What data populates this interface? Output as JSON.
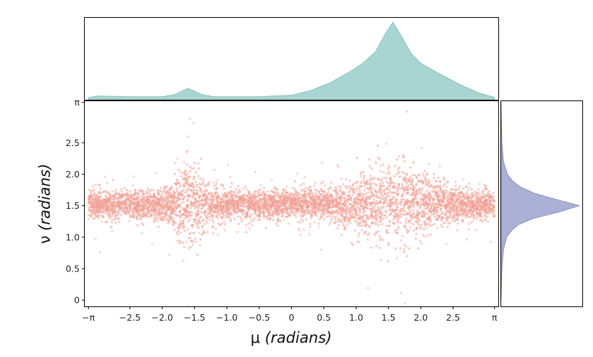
{
  "chart_data": {
    "type": "scatter",
    "title": "",
    "xlabel_symbol": "μ",
    "xlabel_unit": "(radians)",
    "ylabel_symbol": "ν",
    "ylabel_unit": "(radians)",
    "xlim": [
      -3.2,
      3.2
    ],
    "ylim": [
      -0.1,
      3.16
    ],
    "x_ticks": [
      {
        "value": -3.14159,
        "label": "−π"
      },
      {
        "value": -2.5,
        "label": "−2.5"
      },
      {
        "value": -2.0,
        "label": "−2.0"
      },
      {
        "value": -1.5,
        "label": "−1.5"
      },
      {
        "value": -1.0,
        "label": "−1.0"
      },
      {
        "value": -0.5,
        "label": "−0.5"
      },
      {
        "value": 0.0,
        "label": "0"
      },
      {
        "value": 0.5,
        "label": "0.5"
      },
      {
        "value": 1.0,
        "label": "1.0"
      },
      {
        "value": 1.5,
        "label": "1.5"
      },
      {
        "value": 2.0,
        "label": "2.0"
      },
      {
        "value": 2.5,
        "label": "2.5"
      },
      {
        "value": 3.14159,
        "label": "π"
      }
    ],
    "y_ticks": [
      {
        "value": 0.0,
        "label": "0"
      },
      {
        "value": 0.5,
        "label": "0.5"
      },
      {
        "value": 1.0,
        "label": "1.0"
      },
      {
        "value": 1.5,
        "label": "1.5"
      },
      {
        "value": 2.0,
        "label": "2.0"
      },
      {
        "value": 2.5,
        "label": "2.5"
      },
      {
        "value": 3.14159,
        "label": "π"
      }
    ],
    "scatter_color": "#f0a096",
    "marginal_x": {
      "type": "area",
      "color": "#a8d5d2",
      "x": [
        -3.14,
        -3.0,
        -2.5,
        -2.0,
        -1.8,
        -1.6,
        -1.4,
        -1.2,
        -1.0,
        -0.5,
        0.0,
        0.3,
        0.6,
        0.9,
        1.1,
        1.3,
        1.45,
        1.57,
        1.7,
        1.85,
        2.0,
        2.3,
        2.6,
        2.9,
        3.14
      ],
      "density": [
        0.03,
        0.05,
        0.04,
        0.04,
        0.07,
        0.15,
        0.07,
        0.04,
        0.04,
        0.04,
        0.06,
        0.12,
        0.22,
        0.36,
        0.47,
        0.62,
        0.85,
        1.0,
        0.82,
        0.6,
        0.47,
        0.33,
        0.2,
        0.09,
        0.03
      ]
    },
    "marginal_y": {
      "type": "area",
      "color": "#aab0d6",
      "y": [
        0.0,
        0.5,
        0.8,
        1.0,
        1.1,
        1.2,
        1.3,
        1.4,
        1.5,
        1.6,
        1.7,
        1.8,
        1.9,
        2.0,
        2.2,
        2.5,
        3.14
      ],
      "density": [
        0.0,
        0.01,
        0.03,
        0.07,
        0.13,
        0.22,
        0.42,
        0.74,
        1.0,
        0.7,
        0.42,
        0.24,
        0.14,
        0.08,
        0.03,
        0.01,
        0.0
      ]
    }
  }
}
